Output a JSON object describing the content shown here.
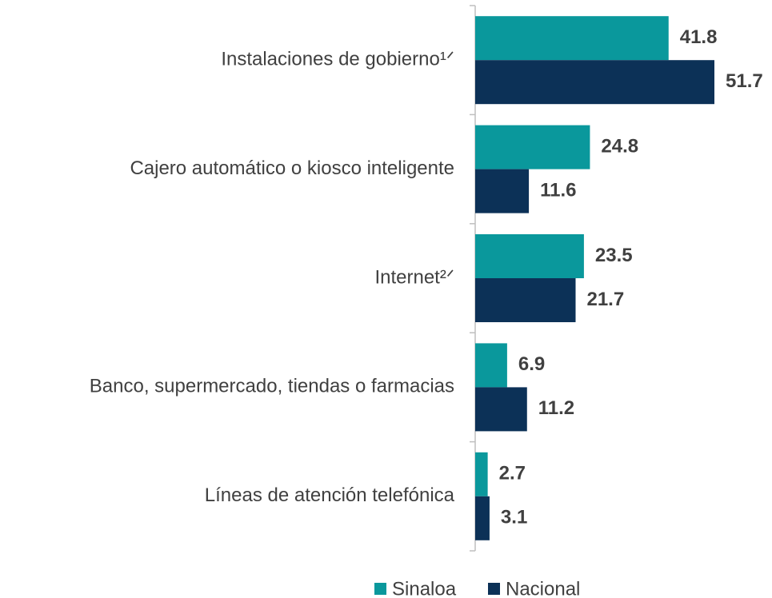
{
  "chart_data": {
    "type": "bar",
    "orientation": "horizontal",
    "categories": [
      "Instalaciones de gobierno¹ᐟ",
      "Cajero automático o kiosco inteligente",
      "Internet²ᐟ",
      "Banco, supermercado, tiendas o farmacias",
      "Líneas de atención telefónica"
    ],
    "series": [
      {
        "name": "Sinaloa",
        "color": "#0a989c",
        "values": [
          41.8,
          24.8,
          23.5,
          6.9,
          2.7
        ]
      },
      {
        "name": "Nacional",
        "color": "#0c3157",
        "values": [
          51.7,
          11.6,
          21.7,
          11.2,
          3.1
        ]
      }
    ],
    "legend": "bottom"
  }
}
